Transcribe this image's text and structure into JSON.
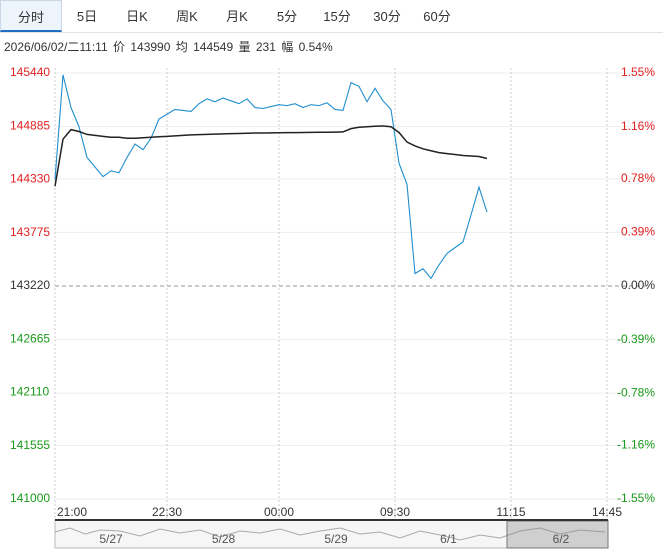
{
  "tabs": [
    "分时",
    "5日",
    "日K",
    "周K",
    "月K",
    "5分",
    "15分",
    "30分",
    "60分"
  ],
  "active_tab": 0,
  "info": {
    "datetime": "2026/06/02/二11:11",
    "price_label": "价",
    "price": "143990",
    "avg_label": "均",
    "avg": "144549",
    "volume_label": "量",
    "volume": "231",
    "range_label": "幅",
    "range": "0.54%"
  },
  "chart_data": {
    "type": "line",
    "series": [
      {
        "color": "#1f8ecd",
        "values": [
          144330,
          145420,
          145080,
          144880,
          144560,
          144460,
          144360,
          144420,
          144400,
          144560,
          144700,
          144640,
          144760,
          144960,
          145010,
          145060,
          145050,
          145040,
          145120,
          145170,
          145140,
          145180,
          145150,
          145120,
          145170,
          145080,
          145070,
          145090,
          145110,
          145100,
          145120,
          145080,
          145110,
          145100,
          145130,
          145060,
          145050,
          145340,
          145300,
          145140,
          145280,
          145150,
          145060,
          144500,
          144280,
          143350,
          143400,
          143300,
          143440,
          143560,
          143620,
          143680,
          143960,
          144250,
          143990
        ]
      },
      {
        "color": "#222222",
        "values": [
          144260,
          144750,
          144850,
          144830,
          144800,
          144790,
          144780,
          144770,
          144770,
          144760,
          144760,
          144765,
          144770,
          144775,
          144780,
          144785,
          144790,
          144795,
          144798,
          144800,
          144803,
          144806,
          144808,
          144810,
          144812,
          144814,
          144815,
          144816,
          144817,
          144818,
          144819,
          144820,
          144821,
          144822,
          144823,
          144824,
          144826,
          144860,
          144875,
          144880,
          144885,
          144888,
          144880,
          144820,
          144720,
          144680,
          144650,
          144630,
          144610,
          144600,
          144590,
          144580,
          144575,
          144570,
          144549
        ]
      }
    ],
    "xlim": [
      0,
      69
    ],
    "xticks": [
      {
        "value": 0,
        "label": "21:00"
      },
      {
        "value": 14,
        "label": "22:30"
      },
      {
        "value": 28,
        "label": "00:00"
      },
      {
        "value": 42.5,
        "label": "09:30"
      },
      {
        "value": 57,
        "label": "11:15"
      },
      {
        "value": 69,
        "label": "14:45"
      }
    ],
    "ylim": [
      141000,
      145440
    ],
    "yticks": [
      145440,
      144885,
      144330,
      143775,
      143220,
      142665,
      142110,
      141555,
      141000
    ],
    "y2lim": [
      -1.55,
      1.55
    ],
    "y2ticks": [
      {
        "value": 1.55,
        "label": "1.55%"
      },
      {
        "value": 1.16,
        "label": "1.16%"
      },
      {
        "value": 0.78,
        "label": "0.78%"
      },
      {
        "value": 0.39,
        "label": "0.39%"
      },
      {
        "value": 0,
        "label": "0.00%"
      },
      {
        "value": -0.39,
        "label": "-0.39%"
      },
      {
        "value": -0.78,
        "label": "-0.78%"
      },
      {
        "value": -1.16,
        "label": "-1.16%"
      },
      {
        "value": -1.55,
        "label": "-1.55%"
      }
    ],
    "up_color": "#e02020",
    "down_color": "#1a9a1a",
    "navigator": [
      "5/27",
      "5/28",
      "5/29",
      "6/1",
      "6/2"
    ]
  }
}
